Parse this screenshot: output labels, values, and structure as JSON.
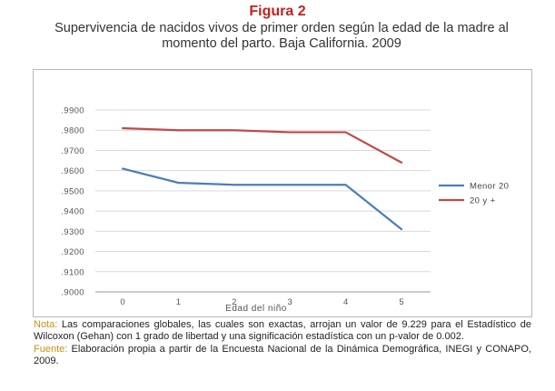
{
  "figure_label": "Figura 2",
  "title": "Supervivencia de nacidos vivos de primer orden según la edad de la madre al momento del parto. Baja California. 2009",
  "chart_data": {
    "type": "line",
    "title": "",
    "xlabel": "Edad del niño",
    "ylabel": "",
    "x": [
      0,
      1,
      2,
      3,
      4,
      5
    ],
    "x_tick_labels": [
      "0",
      "1",
      "2",
      "3",
      "4",
      "5"
    ],
    "ylim": [
      0.9,
      0.99
    ],
    "y_tick_labels": [
      ".9000",
      ".9100",
      ".9200",
      ".9300",
      ".9400",
      ".9500",
      ".9600",
      ".9700",
      ".9800",
      ".9900"
    ],
    "grid": true,
    "legend_position": "right",
    "series": [
      {
        "name": "Menor 20",
        "color": "#4a7ebb",
        "values": [
          0.961,
          0.954,
          0.953,
          0.953,
          0.953,
          0.931
        ]
      },
      {
        "name": "20 y +",
        "color": "#be4b48",
        "values": [
          0.981,
          0.98,
          0.98,
          0.979,
          0.979,
          0.964
        ]
      }
    ]
  },
  "notes": {
    "nota_label": "Nota:",
    "nota_text": " Las comparaciones globales, las cuales son exactas, arrojan un valor de  9.229 para el Estadístico de Wilcoxon (Gehan) con 1 grado de libertad y una significación estadística  con un p-valor de  0.002.",
    "fuente_label": "Fuente:",
    "fuente_text": " Elaboración propia a partir de la Encuesta Nacional de la Dinámica Demográfica, INEGI y CONAPO, 2009."
  }
}
